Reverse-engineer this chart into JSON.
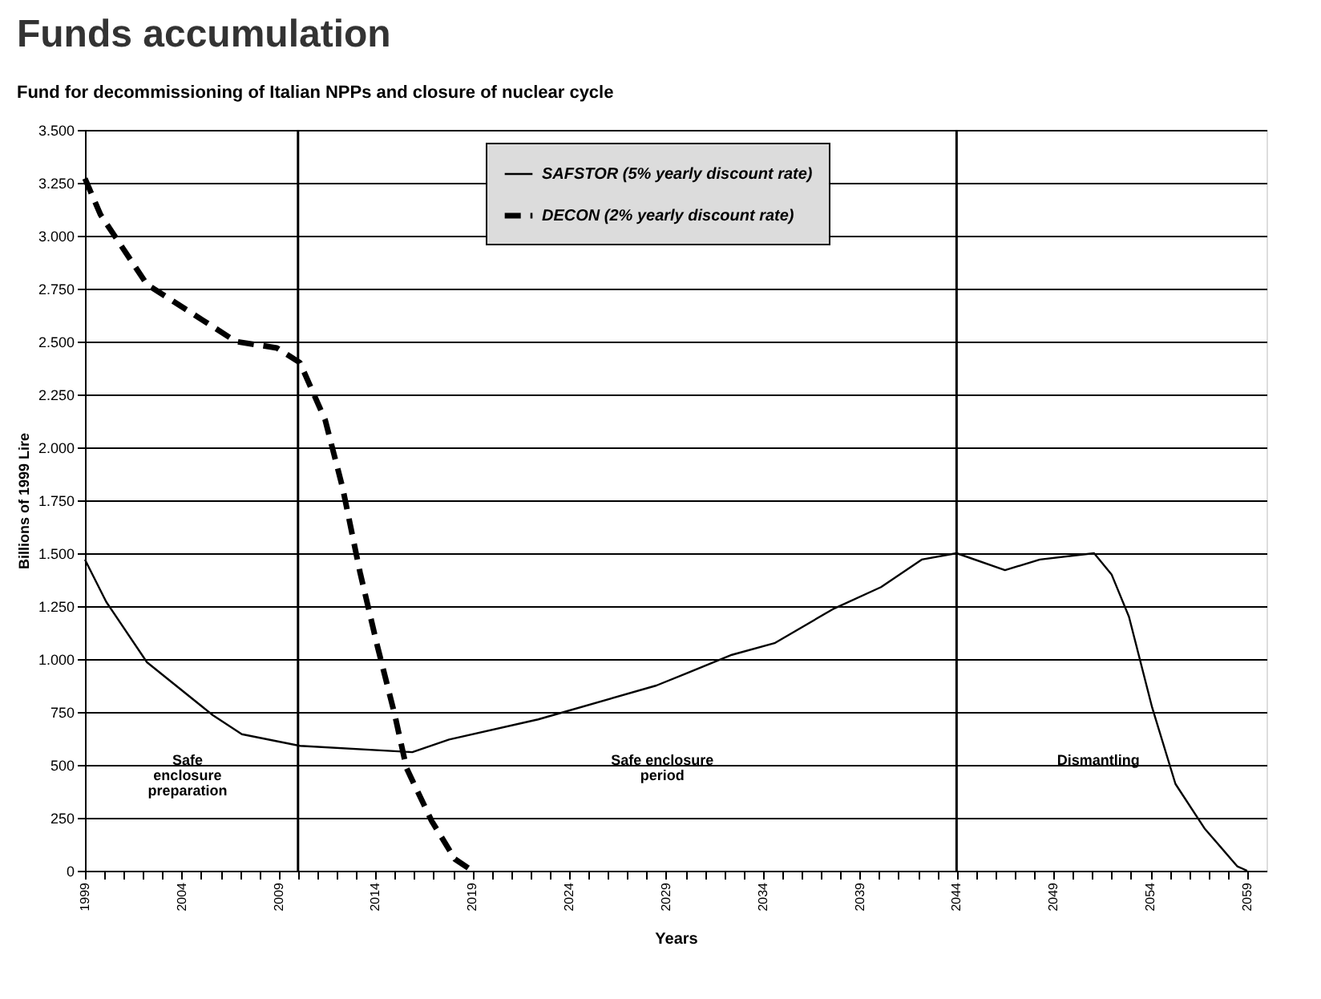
{
  "chart_data": {
    "type": "line",
    "title": "Funds accumulation",
    "subtitle": "Fund for decommissioning of Italian NPPs and closure of nuclear cycle",
    "xlabel": "Years",
    "ylabel": "Billions of 1999 Lire",
    "series": [
      {
        "name": "SAFSTOR (5% yearly discount rate)",
        "color": "#000000",
        "line_style": "solid",
        "x": [
          1999,
          2000.1,
          2002.2,
          2005.6,
          2007.1,
          2010.1,
          2015.9,
          2017.8,
          2022.4,
          2028.5,
          2030,
          2032.4,
          2034.6,
          2037.6,
          2040.1,
          2042.2,
          2044,
          2046.5,
          2048.3,
          2051.1,
          2052,
          2052.9,
          2054.1,
          2055.3,
          2056.8,
          2058.5,
          2059
        ],
        "values": [
          1470,
          1270,
          985,
          735,
          645,
          590,
          560,
          620,
          715,
          875,
          930,
          1020,
          1075,
          1235,
          1340,
          1470,
          1500,
          1420,
          1470,
          1500,
          1400,
          1200,
          770,
          410,
          200,
          20,
          0
        ]
      },
      {
        "name": "DECON (2% yearly discount rate)",
        "color": "#000000",
        "line_style": "dashed",
        "x": [
          1999,
          1999.8,
          2002.2,
          2006.8,
          2008.9,
          2010.1,
          2011.4,
          2012.3,
          2013.2,
          2014.1,
          2015,
          2015.6,
          2016.9,
          2018.1,
          2019
        ],
        "values": [
          3270,
          3100,
          2770,
          2500,
          2470,
          2400,
          2130,
          1810,
          1410,
          1060,
          735,
          485,
          235,
          55,
          0
        ]
      }
    ],
    "xlim": [
      1999,
      2060
    ],
    "ylim": [
      0,
      3500
    ],
    "xticks": [
      1999,
      {
        "value": 2000,
        "label": null
      },
      {
        "value": 2001,
        "label": null
      },
      {
        "value": 2002,
        "label": null
      },
      {
        "value": 2003,
        "label": null
      },
      2004,
      {
        "value": 2005,
        "label": null
      },
      {
        "value": 2006,
        "label": null
      },
      {
        "value": 2007,
        "label": null
      },
      {
        "value": 2008,
        "label": null
      },
      2009,
      {
        "value": 2010,
        "label": null
      },
      {
        "value": 2011,
        "label": null
      },
      {
        "value": 2012,
        "label": null
      },
      {
        "value": 2013,
        "label": null
      },
      2014,
      {
        "value": 2015,
        "label": null
      },
      {
        "value": 2016,
        "label": null
      },
      {
        "value": 2017,
        "label": null
      },
      {
        "value": 2018,
        "label": null
      },
      2019,
      {
        "value": 2020,
        "label": null
      },
      {
        "value": 2021,
        "label": null
      },
      {
        "value": 2022,
        "label": null
      },
      {
        "value": 2023,
        "label": null
      },
      2024,
      {
        "value": 2025,
        "label": null
      },
      {
        "value": 2026,
        "label": null
      },
      {
        "value": 2027,
        "label": null
      },
      {
        "value": 2028,
        "label": null
      },
      2029,
      {
        "value": 2030,
        "label": null
      },
      {
        "value": 2031,
        "label": null
      },
      {
        "value": 2032,
        "label": null
      },
      {
        "value": 2033,
        "label": null
      },
      2034,
      {
        "value": 2035,
        "label": null
      },
      {
        "value": 2036,
        "label": null
      },
      {
        "value": 2037,
        "label": null
      },
      {
        "value": 2038,
        "label": null
      },
      2039,
      {
        "value": 2040,
        "label": null
      },
      {
        "value": 2041,
        "label": null
      },
      {
        "value": 2042,
        "label": null
      },
      {
        "value": 2043,
        "label": null
      },
      2044,
      {
        "value": 2045,
        "label": null
      },
      {
        "value": 2046,
        "label": null
      },
      {
        "value": 2047,
        "label": null
      },
      {
        "value": 2048,
        "label": null
      },
      2049,
      {
        "value": 2050,
        "label": null
      },
      {
        "value": 2051,
        "label": null
      },
      {
        "value": 2052,
        "label": null
      },
      {
        "value": 2053,
        "label": null
      },
      2054,
      {
        "value": 2055,
        "label": null
      },
      {
        "value": 2056,
        "label": null
      },
      {
        "value": 2057,
        "label": null
      },
      {
        "value": 2058,
        "label": null
      },
      2059
    ],
    "yticks": [
      0,
      250,
      500,
      750,
      {
        "value": 1000,
        "label": "1.000"
      },
      {
        "value": 1250,
        "label": "1.250"
      },
      {
        "value": 1500,
        "label": "1.500"
      },
      {
        "value": 1750,
        "label": "1.750"
      },
      {
        "value": 2000,
        "label": "2.000"
      },
      {
        "value": 2250,
        "label": "2.250"
      },
      {
        "value": 2500,
        "label": "2.500"
      },
      {
        "value": 2750,
        "label": "2.750"
      },
      {
        "value": 3000,
        "label": "3.000"
      },
      {
        "value": 3250,
        "label": "3.250"
      },
      {
        "value": 3500,
        "label": "3.500"
      }
    ],
    "ref_lines": [
      {
        "axis": "x",
        "value": 2010
      },
      {
        "axis": "x",
        "value": 2044
      }
    ],
    "annotations": [
      "Safe\nenclosure\npreparation",
      "Safe enclosure\nperiod",
      "Dismantling"
    ],
    "grid": "y",
    "legend": "top",
    "marker": "none"
  }
}
